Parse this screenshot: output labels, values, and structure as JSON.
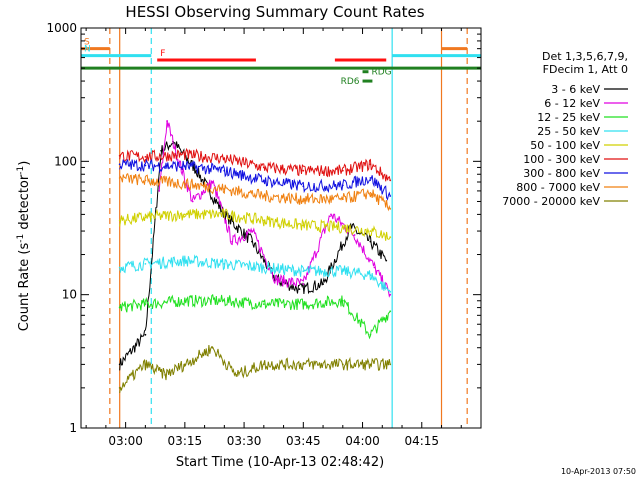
{
  "chart_data": {
    "type": "line",
    "title": "HESSI Observing Summary Count Rates",
    "xlabel": "Start Time (10-Apr-13 02:48:42)",
    "ylabel": "Count Rate (s",
    "ylabel_sup": "-1",
    "ylabel_tail": " detector",
    "ylabel_sup2": "-1",
    "ylabel_close": ")",
    "y_scale": "log",
    "ylim": [
      1,
      1000
    ],
    "xlim": [
      "02:48:42",
      "04:30:00"
    ],
    "x_ticks": [
      {
        "t": "03:00",
        "label": "03:00"
      },
      {
        "t": "03:15",
        "label": "03:15"
      },
      {
        "t": "03:30",
        "label": "03:30"
      },
      {
        "t": "03:45",
        "label": "03:45"
      },
      {
        "t": "04:00",
        "label": "04:00"
      },
      {
        "t": "04:15",
        "label": "04:15"
      }
    ],
    "y_ticks": [
      {
        "v": 1,
        "label": "1"
      },
      {
        "v": 10,
        "label": "10"
      },
      {
        "v": 100,
        "label": "100"
      },
      {
        "v": 1000,
        "label": "1000"
      }
    ],
    "legend_header": [
      "Det 1,3,5,6,7,9,",
      "FDecim 1, Att 0"
    ],
    "legend_position": "right",
    "timestamp": "10-Apr-2013 07:50",
    "flags": [
      {
        "label": "S",
        "color": "#f07820",
        "y": 700,
        "segments": [
          [
            "02:48:42",
            "02:56:00"
          ],
          [
            "04:20:00",
            "04:26:30"
          ]
        ]
      },
      {
        "label": "N",
        "color": "#30e0f0",
        "y": 620,
        "segments": [
          [
            "02:48:42",
            "03:06:30"
          ],
          [
            "04:07:30",
            "04:30:00"
          ]
        ]
      },
      {
        "label": "F",
        "color": "#ff1010",
        "y": 575,
        "segments": [
          [
            "03:08:00",
            "03:33:00"
          ],
          [
            "03:53:00",
            "04:06:00"
          ]
        ]
      },
      {
        "label": "",
        "color": "#208020",
        "y": 500,
        "segments": [
          [
            "02:48:42",
            "04:30:00"
          ]
        ]
      },
      {
        "label": "RDG",
        "color": "#208020",
        "y": 470,
        "segments": [
          [
            "04:00:00",
            "04:01:30"
          ]
        ]
      },
      {
        "label": "RD6",
        "color": "#208020",
        "y": 400,
        "segments": [
          [
            "04:00:00",
            "04:02:30"
          ]
        ]
      }
    ],
    "vertical_markers": [
      {
        "t": "02:56:00",
        "color": "#f07820",
        "dash": true
      },
      {
        "t": "03:06:30",
        "color": "#30e0f0",
        "dash": true
      },
      {
        "t": "02:58:30",
        "color": "#f07820",
        "dash": false
      },
      {
        "t": "04:07:30",
        "color": "#30e0f0",
        "dash": false
      },
      {
        "t": "04:20:00",
        "color": "#f07820",
        "dash": false
      },
      {
        "t": "04:26:30",
        "color": "#f07820",
        "dash": true
      }
    ],
    "series": [
      {
        "name": "3 - 6 keV",
        "color": "#000000",
        "x": [
          "02:58:30",
          "03:05:00",
          "03:09:00",
          "03:12:00",
          "03:18:00",
          "03:25:00",
          "03:32:00",
          "03:38:00",
          "03:44:00",
          "03:50:00",
          "03:57:00",
          "04:02:00",
          "04:06:00"
        ],
        "y": [
          3,
          5,
          120,
          140,
          85,
          40,
          25,
          13,
          11,
          12,
          32,
          25,
          18
        ]
      },
      {
        "name": "6 - 12 keV",
        "color": "#e000e0",
        "x": [
          "03:08:30",
          "03:10:30",
          "03:13:00",
          "03:17:00",
          "03:22:00",
          "03:27:00",
          "03:32:00",
          "03:38:00",
          "03:45:00",
          "03:52:00",
          "03:58:00",
          "04:03:00",
          "04:07:00"
        ],
        "y": [
          60,
          200,
          110,
          50,
          70,
          25,
          30,
          13,
          12,
          40,
          28,
          16,
          10
        ]
      },
      {
        "name": "12 - 25 keV",
        "color": "#20e020",
        "x": [
          "02:58:30",
          "03:05:00",
          "03:15:00",
          "03:25:00",
          "03:35:00",
          "03:45:00",
          "03:55:00",
          "04:02:00",
          "04:07:00"
        ],
        "y": [
          8,
          8.5,
          9,
          9,
          8.5,
          8.5,
          9,
          5,
          7.5
        ]
      },
      {
        "name": "25 - 50 keV",
        "color": "#30e0f0",
        "x": [
          "02:58:30",
          "03:05:00",
          "03:15:00",
          "03:25:00",
          "03:35:00",
          "03:45:00",
          "03:55:00",
          "04:02:00",
          "04:07:00"
        ],
        "y": [
          16,
          17,
          18,
          17,
          16,
          15,
          15,
          14,
          10.5
        ]
      },
      {
        "name": "50 - 100 keV",
        "color": "#d0d000",
        "x": [
          "02:58:30",
          "03:05:00",
          "03:15:00",
          "03:25:00",
          "03:35:00",
          "03:45:00",
          "03:55:00",
          "04:02:00",
          "04:07:00"
        ],
        "y": [
          36,
          38,
          40,
          40,
          36,
          33,
          32,
          30,
          27
        ]
      },
      {
        "name": "100 - 300 keV",
        "color": "#e01010",
        "x": [
          "02:58:30",
          "03:05:00",
          "03:15:00",
          "03:25:00",
          "03:35:00",
          "03:45:00",
          "03:55:00",
          "04:02:00",
          "04:07:00"
        ],
        "y": [
          110,
          108,
          112,
          105,
          90,
          85,
          85,
          95,
          72
        ]
      },
      {
        "name": "300 - 800 keV",
        "color": "#1010e0",
        "x": [
          "02:58:30",
          "03:05:00",
          "03:15:00",
          "03:25:00",
          "03:35:00",
          "03:45:00",
          "03:55:00",
          "04:02:00",
          "04:07:00"
        ],
        "y": [
          95,
          93,
          92,
          85,
          72,
          65,
          66,
          75,
          55
        ]
      },
      {
        "name": "800 - 7000 keV",
        "color": "#f08010",
        "x": [
          "02:58:30",
          "03:05:00",
          "03:15:00",
          "03:25:00",
          "03:35:00",
          "03:45:00",
          "03:55:00",
          "04:02:00",
          "04:07:00"
        ],
        "y": [
          75,
          72,
          68,
          62,
          55,
          52,
          52,
          58,
          44
        ]
      },
      {
        "name": "7000 - 20000 keV",
        "color": "#808000",
        "x": [
          "02:58:30",
          "03:05:00",
          "03:10:00",
          "03:15:00",
          "03:22:00",
          "03:28:00",
          "03:35:00",
          "03:45:00",
          "03:55:00",
          "04:02:00",
          "04:07:00"
        ],
        "y": [
          2,
          3,
          2.5,
          3,
          4,
          2.5,
          3,
          3,
          3,
          3,
          3
        ]
      }
    ]
  }
}
